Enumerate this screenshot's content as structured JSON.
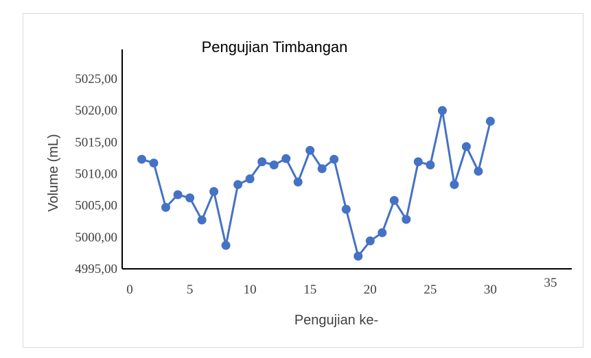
{
  "chart_data": {
    "type": "scatter",
    "title": "Pengujian Timbangan",
    "xlabel": "Pengujian ke-",
    "ylabel": "Volume (mL)",
    "xlim": [
      0,
      35
    ],
    "ylim": [
      4995,
      5025
    ],
    "x_ticks": [
      "0",
      "5",
      "10",
      "15",
      "20",
      "25",
      "30",
      "35"
    ],
    "y_ticks": [
      "4995,00",
      "5000,00",
      "5005,00",
      "5010,00",
      "5015,00",
      "5020,00",
      "5025,00"
    ],
    "grid": false,
    "legend": "none",
    "line_color": "#4472c4",
    "series": [
      {
        "x": [
          1,
          2,
          3,
          4,
          5,
          6,
          7,
          8,
          9,
          10,
          11,
          12,
          13,
          14,
          15,
          16,
          17,
          18,
          19,
          20,
          21,
          22,
          23,
          24,
          25,
          26,
          27,
          28,
          29,
          30
        ],
        "values": [
          5012.2,
          5011.6,
          5004.6,
          5006.6,
          5006.1,
          5002.6,
          5007.1,
          4998.6,
          5008.2,
          5009.1,
          5011.8,
          5011.3,
          5012.3,
          5008.6,
          5013.6,
          5010.7,
          5012.2,
          5004.3,
          4996.9,
          4999.3,
          5000.6,
          5005.7,
          5002.7,
          5011.8,
          5011.3,
          5019.9,
          5008.2,
          5014.2,
          5010.3,
          5018.2
        ]
      }
    ]
  }
}
